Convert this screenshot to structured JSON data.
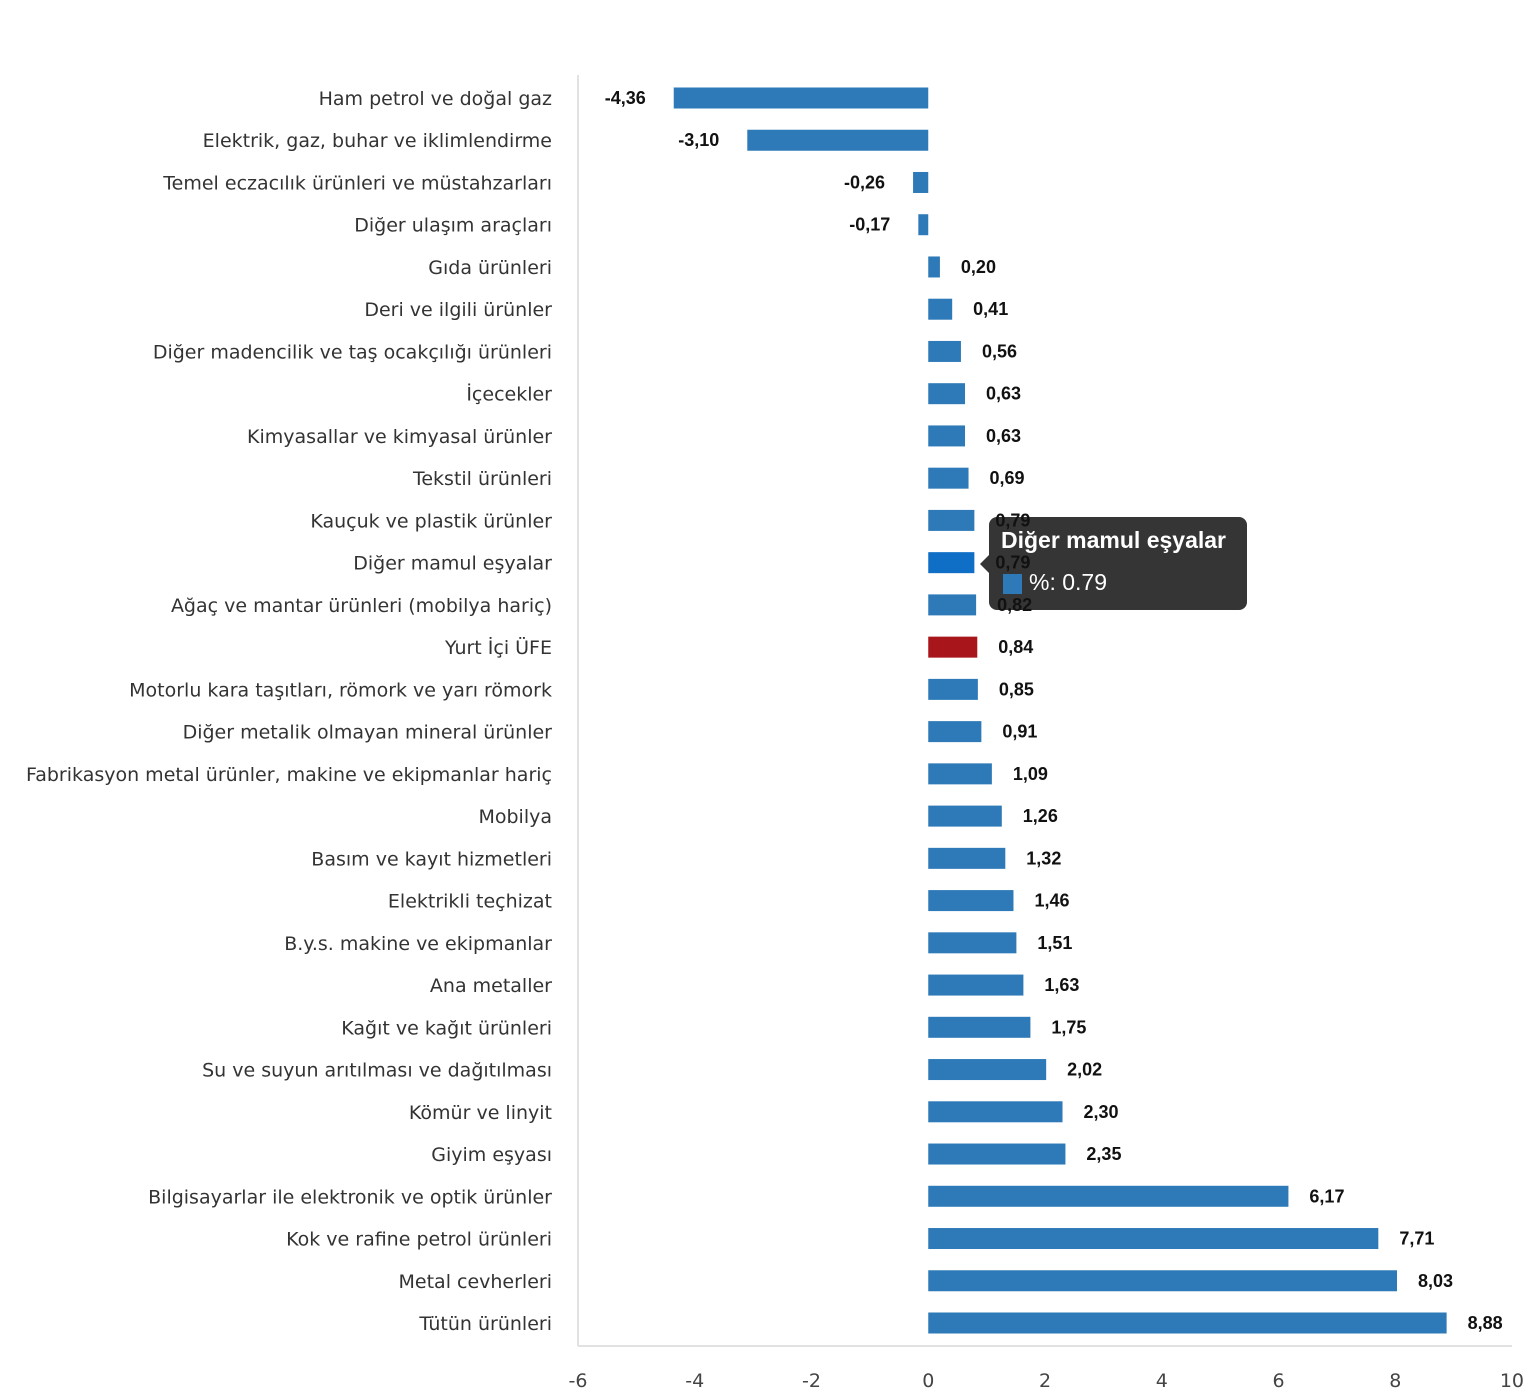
{
  "chart_data": {
    "type": "bar",
    "orientation": "horizontal",
    "title": "",
    "xlabel": "",
    "ylabel": "",
    "xlim": [
      -6,
      10
    ],
    "x_ticks": [
      "-6",
      "-4",
      "-2",
      "0",
      "2",
      "4",
      "6",
      "8",
      "10"
    ],
    "x_tick_values": [
      -6,
      -4,
      -2,
      0,
      2,
      4,
      6,
      8,
      10
    ],
    "grid": false,
    "colors": {
      "bar": "#2e7ab8",
      "highlight": "#0f6fc6",
      "total": "#a8161b"
    },
    "categories": [
      "Ham petrol ve doğal gaz",
      "Elektrik, gaz, buhar ve iklimlendirme",
      "Temel eczacılık ürünleri ve müstahzarları",
      "Diğer ulaşım araçları",
      "Gıda ürünleri",
      "Deri ve ilgili ürünler",
      "Diğer madencilik ve taş ocakçılığı ürünleri",
      "İçecekler",
      "Kimyasallar ve kimyasal ürünler",
      "Tekstil ürünleri",
      "Kauçuk ve plastik ürünler",
      "Diğer mamul eşyalar",
      "Ağaç ve mantar ürünleri (mobilya hariç)",
      "Yurt İçi ÜFE",
      "Motorlu kara taşıtları, römork ve yarı römork",
      "Diğer metalik olmayan mineral ürünler",
      "Fabrikasyon metal ürünler, makine ve ekipmanlar hariç",
      "Mobilya",
      "Basım ve kayıt hizmetleri",
      "Elektrikli teçhizat",
      "B.y.s. makine ve ekipmanlar",
      "Ana metaller",
      "Kağıt ve kağıt ürünleri",
      "Su ve suyun arıtılması ve dağıtılması",
      "Kömür ve linyit",
      "Giyim eşyası",
      "Bilgisayarlar ile elektronik ve optik ürünler",
      "Kok ve rafine petrol ürünleri",
      "Metal cevherleri",
      "Tütün ürünleri"
    ],
    "values": [
      -4.36,
      -3.1,
      -0.26,
      -0.17,
      0.2,
      0.41,
      0.56,
      0.63,
      0.63,
      0.69,
      0.79,
      0.79,
      0.82,
      0.84,
      0.85,
      0.91,
      1.09,
      1.26,
      1.32,
      1.46,
      1.51,
      1.63,
      1.75,
      2.02,
      2.3,
      2.35,
      6.17,
      7.71,
      8.03,
      8.88
    ],
    "value_labels": [
      "-4,36",
      "-3,10",
      "-0,26",
      "-0,17",
      "0,20",
      "0,41",
      "0,56",
      "0,63",
      "0,63",
      "0,69",
      "0,79",
      "0,79",
      "0,82",
      "0,84",
      "0,85",
      "0,91",
      "1,09",
      "1,26",
      "1,32",
      "1,46",
      "1,51",
      "1,63",
      "1,75",
      "2,02",
      "2,30",
      "2,35",
      "6,17",
      "7,71",
      "8,03",
      "8,88"
    ],
    "highlight_index": 11,
    "total_index": 13
  },
  "tooltip": {
    "title": "Diğer mamul eşyalar",
    "value_text": "%: 0.79"
  }
}
